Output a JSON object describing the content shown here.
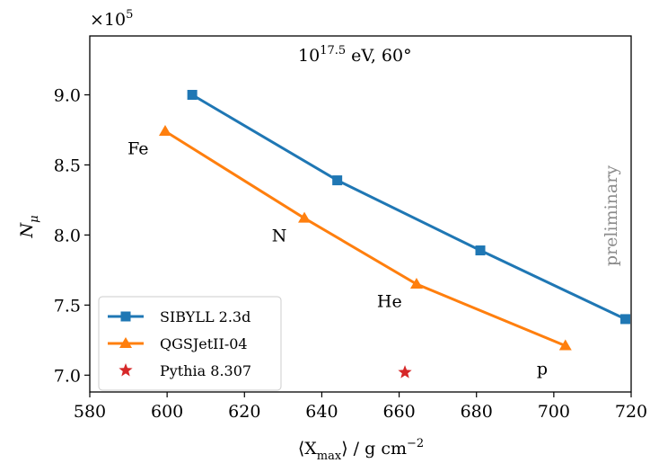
{
  "chart_data": {
    "type": "line",
    "title": "",
    "annotation_energy": "10",
    "annotation_energy_exp": "17.5",
    "annotation_energy_rest": " eV, 60°",
    "ylabel_main": "N",
    "ylabel_sub": "μ",
    "xlabel_left": "⟨X",
    "xlabel_sub": "max",
    "xlabel_right": "⟩ / g cm",
    "xlabel_exp": "−2",
    "y_multiplier_base": "×10",
    "y_multiplier_exp": "5",
    "xlim": [
      580,
      720
    ],
    "ylim": [
      6.88,
      9.42
    ],
    "x_ticks": [
      580,
      600,
      620,
      640,
      660,
      680,
      700,
      720
    ],
    "x_tick_labels": [
      "580",
      "600",
      "620",
      "640",
      "660",
      "680",
      "700",
      "720"
    ],
    "y_ticks": [
      7.0,
      7.5,
      8.0,
      8.5,
      9.0
    ],
    "y_tick_labels": [
      "7.0",
      "7.5",
      "8.0",
      "8.5",
      "9.0"
    ],
    "watermark": "preliminary",
    "legend_position": "lower-left",
    "grid": false,
    "series": [
      {
        "name": "SIBYLL 2.3d",
        "color": "#1f77b4",
        "marker": "square",
        "connected": true,
        "points": [
          {
            "x": 606.5,
            "y": 9.0
          },
          {
            "x": 644.0,
            "y": 8.39
          },
          {
            "x": 681.0,
            "y": 7.89
          },
          {
            "x": 718.5,
            "y": 7.4
          }
        ]
      },
      {
        "name": "QGSJetII-04",
        "color": "#ff7f0e",
        "marker": "triangle",
        "connected": true,
        "points": [
          {
            "x": 599.5,
            "y": 8.74
          },
          {
            "x": 635.5,
            "y": 8.12
          },
          {
            "x": 664.5,
            "y": 7.65
          },
          {
            "x": 703.0,
            "y": 7.21
          }
        ]
      },
      {
        "name": "Pythia 8.307",
        "color": "#d62728",
        "marker": "star",
        "connected": false,
        "points": [
          {
            "x": 661.5,
            "y": 7.02
          }
        ]
      }
    ],
    "point_labels": [
      {
        "text": "Fe",
        "x": 592.5,
        "y": 8.62
      },
      {
        "text": "N",
        "x": 629.0,
        "y": 8.0
      },
      {
        "text": "He",
        "x": 657.5,
        "y": 7.53
      },
      {
        "text": "p",
        "x": 697.0,
        "y": 7.05
      }
    ]
  }
}
